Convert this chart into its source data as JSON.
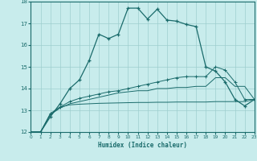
{
  "xlabel": "Humidex (Indice chaleur)",
  "bg_color": "#c8ecec",
  "grid_color": "#9ecece",
  "line_color": "#1a6b6b",
  "xlim": [
    0,
    23
  ],
  "ylim": [
    12,
    18
  ],
  "x_ticks": [
    0,
    1,
    2,
    3,
    4,
    5,
    6,
    7,
    8,
    9,
    10,
    11,
    12,
    13,
    14,
    15,
    16,
    17,
    18,
    19,
    20,
    21,
    22,
    23
  ],
  "y_ticks": [
    12,
    13,
    14,
    15,
    16,
    17,
    18
  ],
  "curve1_x": [
    0,
    1,
    2,
    3,
    4,
    5,
    6,
    7,
    8,
    9,
    10,
    11,
    12,
    13,
    14,
    15,
    16,
    17,
    18,
    19,
    20,
    21,
    22,
    23
  ],
  "curve1_y": [
    12.0,
    12.0,
    12.7,
    13.3,
    14.0,
    14.4,
    15.3,
    16.5,
    16.3,
    16.5,
    17.7,
    17.7,
    17.2,
    17.65,
    17.15,
    17.1,
    16.95,
    16.85,
    15.0,
    14.8,
    14.3,
    13.5,
    13.2,
    13.5
  ],
  "curve2_x": [
    0,
    1,
    2,
    3,
    4,
    5,
    6,
    7,
    8,
    9,
    10,
    11,
    12,
    13,
    14,
    15,
    16,
    17,
    18,
    19,
    20,
    21,
    22,
    23
  ],
  "curve2_y": [
    12.0,
    12.0,
    12.8,
    13.15,
    13.25,
    13.28,
    13.3,
    13.32,
    13.33,
    13.34,
    13.35,
    13.36,
    13.36,
    13.37,
    13.37,
    13.38,
    13.38,
    13.38,
    13.38,
    13.4,
    13.4,
    13.4,
    13.4,
    13.5
  ],
  "curve3_x": [
    0,
    1,
    2,
    3,
    4,
    5,
    6,
    7,
    8,
    9,
    10,
    11,
    12,
    13,
    14,
    15,
    16,
    17,
    18,
    19,
    20,
    21,
    22,
    23
  ],
  "curve3_y": [
    12.0,
    12.0,
    12.8,
    13.1,
    13.3,
    13.4,
    13.5,
    13.6,
    13.7,
    13.8,
    13.85,
    13.9,
    13.9,
    14.0,
    14.0,
    14.05,
    14.05,
    14.1,
    14.1,
    14.5,
    14.5,
    14.1,
    14.1,
    13.5
  ],
  "curve4_x": [
    0,
    1,
    2,
    3,
    4,
    5,
    6,
    7,
    8,
    9,
    10,
    11,
    12,
    13,
    14,
    15,
    16,
    17,
    18,
    19,
    20,
    21,
    22,
    23
  ],
  "curve4_y": [
    12.0,
    12.0,
    12.85,
    13.15,
    13.4,
    13.55,
    13.65,
    13.75,
    13.85,
    13.9,
    14.0,
    14.1,
    14.2,
    14.3,
    14.4,
    14.5,
    14.55,
    14.55,
    14.55,
    15.0,
    14.85,
    14.3,
    13.5,
    13.5
  ]
}
